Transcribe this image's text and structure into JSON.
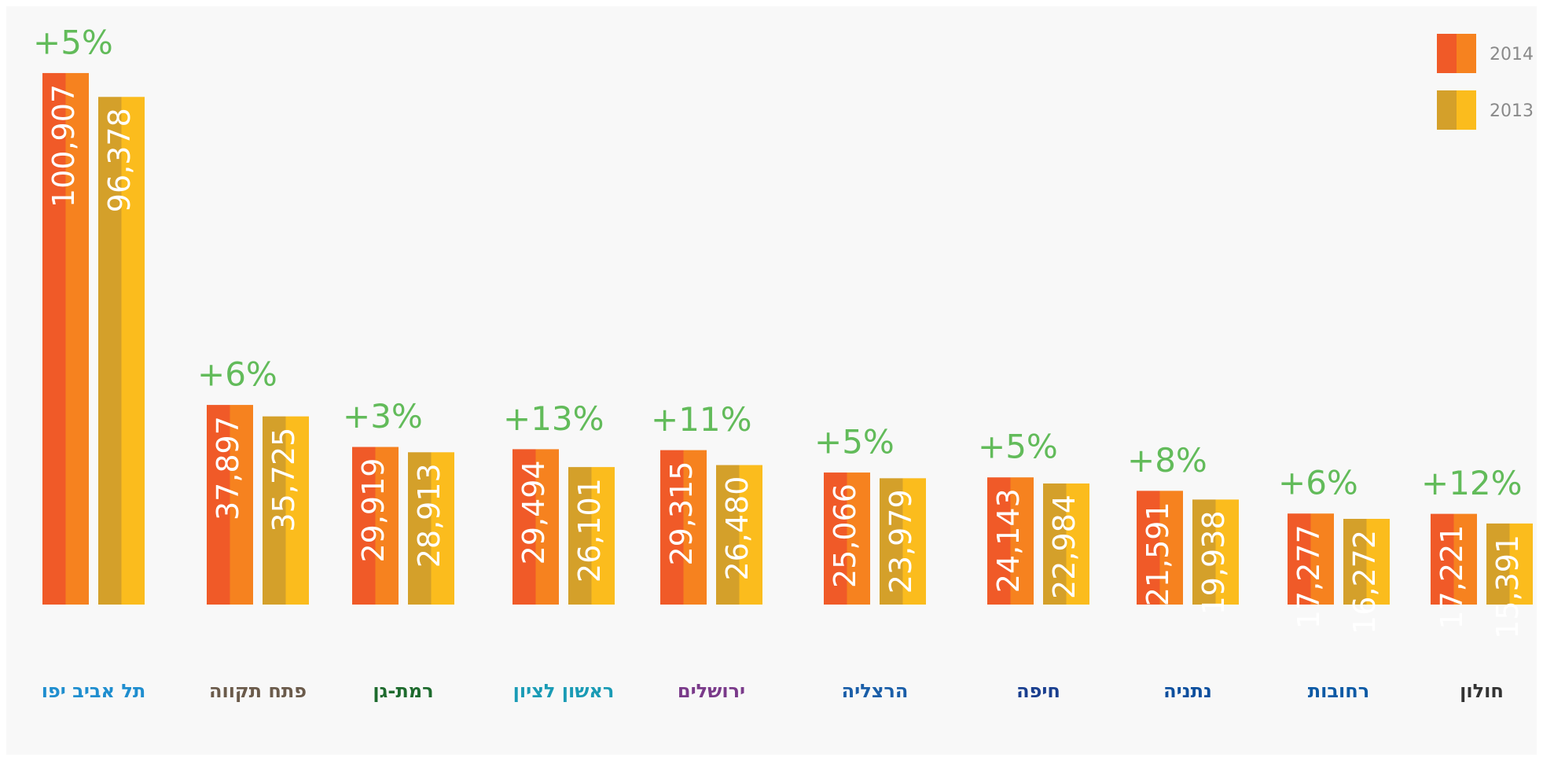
{
  "chart_data": {
    "type": "bar",
    "categories": [
      "תל אביב יפו",
      "פתח תקווה",
      "רמת-גן",
      "ראשון לציון",
      "ירושלים",
      "הרצליה",
      "חיפה",
      "נתניה",
      "רחובות",
      "חולון"
    ],
    "series": [
      {
        "name": "2014",
        "colors": [
          "#f05a28",
          "#f6821f"
        ],
        "values": [
          100907,
          37897,
          29919,
          29494,
          29315,
          25066,
          24143,
          21591,
          17277,
          17221
        ],
        "value_labels": [
          "100,907",
          "37,897",
          "29,919",
          "29,494",
          "29,315",
          "25,066",
          "24,143",
          "21,591",
          "17,277",
          "17,221"
        ]
      },
      {
        "name": "2013",
        "colors": [
          "#d4a02a",
          "#fbbc1d"
        ],
        "values": [
          96378,
          35725,
          28913,
          26101,
          26480,
          23979,
          22984,
          19938,
          16272,
          15391
        ],
        "value_labels": [
          "96,378",
          "35,725",
          "28,913",
          "26,101",
          "26,480",
          "23,979",
          "22,984",
          "19,938",
          "16,272",
          "15,391"
        ]
      }
    ],
    "annotations": [
      "+5%",
      "+6%",
      "+3%",
      "+13%",
      "+11%",
      "+5%",
      "+5%",
      "+8%",
      "+6%",
      "+12%"
    ],
    "ylim": [
      0,
      110000
    ],
    "legend": "top-right"
  }
}
